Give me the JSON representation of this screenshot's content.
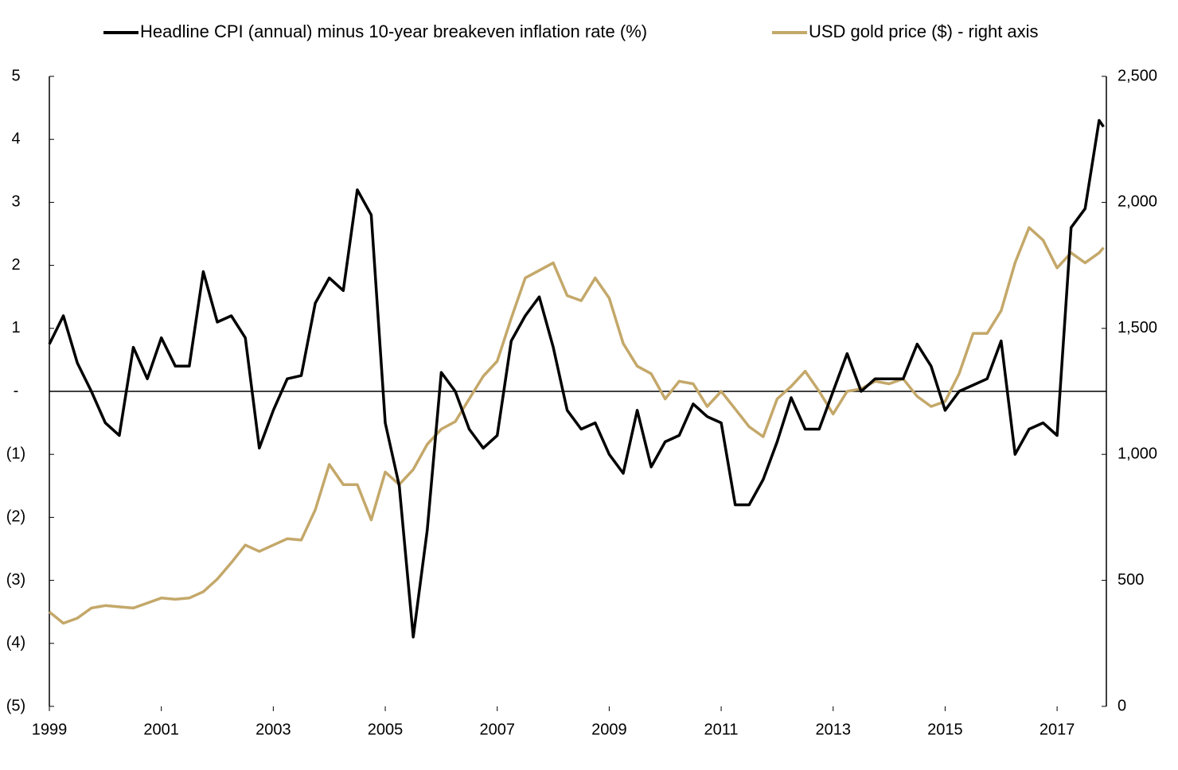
{
  "chart_data": {
    "type": "line",
    "legend": "top",
    "x": [
      1999.0,
      1999.25,
      1999.5,
      1999.75,
      2000.0,
      2000.25,
      2000.5,
      2000.75,
      2001.0,
      2001.25,
      2001.5,
      2001.75,
      2002.0,
      2002.25,
      2002.5,
      2002.75,
      2003.0,
      2003.25,
      2003.5,
      2003.75,
      2004.0,
      2004.25,
      2004.5,
      2004.75,
      2005.0,
      2005.25,
      2005.5,
      2005.75,
      2006.0,
      2006.25,
      2006.5,
      2006.75,
      2007.0,
      2007.25,
      2007.5,
      2007.75,
      2008.0,
      2008.25,
      2008.5,
      2008.75,
      2009.0,
      2009.25,
      2009.5,
      2009.75,
      2010.0,
      2010.25,
      2010.5,
      2010.75,
      2011.0,
      2011.25,
      2011.5,
      2011.75,
      2012.0,
      2012.25,
      2012.5,
      2012.75,
      2013.0,
      2013.25,
      2013.5,
      2013.75,
      2014.0,
      2014.25,
      2014.5,
      2014.75,
      2015.0,
      2015.25,
      2015.5,
      2015.75,
      2016.0,
      2016.25,
      2016.5,
      2016.75,
      2017.0,
      2017.25,
      2017.5,
      2017.75,
      2017.83
    ],
    "series": [
      {
        "name": "Headline CPI (annual) minus 10-year breakeven inflation rate (%)",
        "color": "#000000",
        "values": [
          0.75,
          1.2,
          0.45,
          0.0,
          -0.5,
          -0.7,
          0.7,
          0.2,
          0.85,
          0.4,
          0.4,
          1.9,
          1.1,
          1.2,
          0.85,
          -0.9,
          -0.3,
          0.2,
          0.25,
          1.4,
          1.8,
          1.6,
          3.2,
          2.8,
          -0.5,
          -1.5,
          -3.9,
          -2.2,
          0.3,
          0.0,
          -0.6,
          -0.9,
          -0.7,
          0.8,
          1.2,
          1.5,
          0.7,
          -0.3,
          -0.6,
          -0.5,
          -1.0,
          -1.3,
          -0.3,
          -1.2,
          -0.8,
          -0.7,
          -0.2,
          -0.4,
          -0.5,
          -1.8,
          -1.8,
          -1.4,
          -0.8,
          -0.1,
          -0.6,
          -0.6,
          0.0,
          0.6,
          0.0,
          0.2,
          0.2,
          0.2,
          0.75,
          0.4,
          -0.3,
          0.0,
          0.1,
          0.2,
          0.8,
          -1.0,
          -0.6,
          -0.5,
          -0.7,
          2.6,
          2.9,
          4.3,
          4.2
        ]
      },
      {
        "name": "USD gold price ($) - right axis",
        "color": "#c4a86a",
        "axis": "y2",
        "values": [
          375,
          330,
          350,
          390,
          400,
          395,
          390,
          410,
          430,
          425,
          430,
          455,
          505,
          570,
          640,
          615,
          640,
          665,
          660,
          780,
          960,
          880,
          880,
          740,
          930,
          880,
          940,
          1040,
          1100,
          1130,
          1220,
          1310,
          1370,
          1540,
          1700,
          1730,
          1760,
          1630,
          1610,
          1700,
          1620,
          1440,
          1350,
          1320,
          1220,
          1290,
          1280,
          1190,
          1250,
          1180,
          1110,
          1070,
          1220,
          1270,
          1330,
          1250,
          1160,
          1250,
          1260,
          1290,
          1280,
          1300,
          1230,
          1190,
          1210,
          1320,
          1480,
          1480,
          1570,
          1760,
          1900,
          1850,
          1740,
          1800,
          1760,
          1800,
          1820
        ]
      }
    ],
    "xlim": [
      1999,
      2017.88
    ],
    "xticks": [
      1999,
      2001,
      2003,
      2005,
      2007,
      2009,
      2011,
      2013,
      2015,
      2017
    ],
    "ylim": [
      -5,
      5
    ],
    "yticks": [
      {
        "value": -5,
        "label": "(5)"
      },
      {
        "value": -4,
        "label": "(4)"
      },
      {
        "value": -3,
        "label": "(3)"
      },
      {
        "value": -2,
        "label": "(2)"
      },
      {
        "value": -1,
        "label": "(1)"
      },
      {
        "value": 0,
        "label": "-"
      },
      1,
      2,
      3,
      4,
      5
    ],
    "y2lim": [
      0,
      2500
    ],
    "y2ticks": [
      0,
      500,
      {
        "value": 1000,
        "label": "1,000"
      },
      {
        "value": 1500,
        "label": "1,500"
      },
      {
        "value": 2000,
        "label": "2,000"
      },
      {
        "value": 2500,
        "label": "2,500"
      }
    ]
  }
}
